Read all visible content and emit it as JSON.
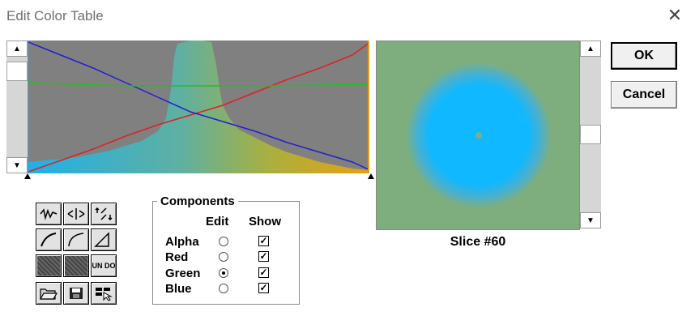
{
  "window": {
    "title": "Edit Color Table"
  },
  "buttons": {
    "ok": "OK",
    "cancel": "Cancel",
    "undo": "UN DO"
  },
  "preview": {
    "slice_label": "Slice #60"
  },
  "components": {
    "title": "Components",
    "edit_header": "Edit",
    "show_header": "Show",
    "rows": [
      {
        "label": "Alpha",
        "edit_selected": false,
        "show": true
      },
      {
        "label": "Red",
        "edit_selected": false,
        "show": true
      },
      {
        "label": "Green",
        "edit_selected": true,
        "show": true
      },
      {
        "label": "Blue",
        "edit_selected": false,
        "show": true
      }
    ]
  },
  "colors": {
    "red_curve": "#e02020",
    "green_curve": "#20c020",
    "blue_curve": "#2020d0",
    "preview_bg": "#7fae7e",
    "blob": "#10b8ff"
  }
}
